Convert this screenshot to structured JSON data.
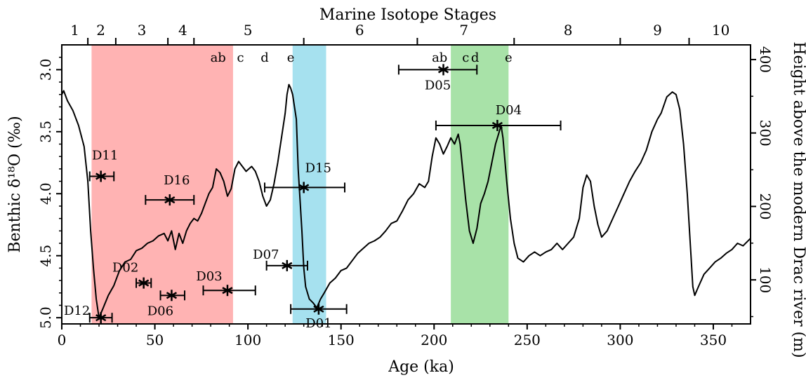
{
  "chart_data": {
    "type": "line",
    "top_axis_title": "Marine Isotope Stages",
    "xlabel": "Age (ka)",
    "ylabel": "Benthic δ¹⁸O (‰)",
    "ylabel_right": "Height above the modern Drac river (m)",
    "xlim": [
      0,
      370
    ],
    "ylim": [
      2.8,
      5.05
    ],
    "y_inverted": true,
    "y_right_lim": [
      40,
      420
    ],
    "x_ticks": [
      0,
      50,
      100,
      150,
      200,
      250,
      300,
      350
    ],
    "x_tick_labels": [
      "0",
      "50",
      "100",
      "150",
      "200",
      "250",
      "300",
      "350"
    ],
    "y_ticks": [
      3.0,
      3.5,
      4.0,
      4.5,
      5.0
    ],
    "y_tick_labels": [
      "3.0",
      "3.5",
      "4.0",
      "4.5",
      "5.0"
    ],
    "y_right_ticks": [
      100,
      200,
      300,
      400
    ],
    "y_right_tick_labels": [
      "100",
      "200",
      "300",
      "400"
    ],
    "grid": false,
    "shaded_bands": [
      {
        "x0": 16,
        "x1": 92,
        "color": "#ffb3b3"
      },
      {
        "x0": 124,
        "x1": 142,
        "color": "#a6e1ef"
      },
      {
        "x0": 209,
        "x1": 240,
        "color": "#a8e2a8"
      }
    ],
    "stage_labels": [
      {
        "label": "1",
        "x": 7
      },
      {
        "label": "2",
        "x": 21
      },
      {
        "label": "3",
        "x": 43
      },
      {
        "label": "4",
        "x": 65
      },
      {
        "label": "5",
        "x": 100
      },
      {
        "label": "6",
        "x": 160
      },
      {
        "label": "7",
        "x": 216
      },
      {
        "label": "8",
        "x": 272
      },
      {
        "label": "9",
        "x": 320
      },
      {
        "label": "10",
        "x": 354
      }
    ],
    "stage_boundaries": [
      14,
      29,
      57,
      71,
      130,
      191,
      243,
      300,
      337
    ],
    "substage_labels": [
      {
        "label": "ab",
        "x": 84
      },
      {
        "label": "c",
        "x": 96
      },
      {
        "label": "d",
        "x": 109
      },
      {
        "label": "e",
        "x": 123
      },
      {
        "label": "ab",
        "x": 203
      },
      {
        "label": "c",
        "x": 217
      },
      {
        "label": "d",
        "x": 222
      },
      {
        "label": "e",
        "x": 240
      }
    ],
    "series": [
      {
        "values": [
          [
            0,
            3.2
          ],
          [
            1,
            3.17
          ],
          [
            3,
            3.25
          ],
          [
            6,
            3.33
          ],
          [
            9,
            3.45
          ],
          [
            12,
            3.62
          ],
          [
            14,
            3.9
          ],
          [
            15.5,
            4.3
          ],
          [
            17,
            4.6
          ],
          [
            18.5,
            4.85
          ],
          [
            20,
            5.0
          ],
          [
            22,
            4.93
          ],
          [
            25,
            4.82
          ],
          [
            28,
            4.74
          ],
          [
            31,
            4.62
          ],
          [
            34,
            4.55
          ],
          [
            37,
            4.53
          ],
          [
            40,
            4.46
          ],
          [
            43,
            4.44
          ],
          [
            46,
            4.4
          ],
          [
            49,
            4.38
          ],
          [
            52,
            4.34
          ],
          [
            55,
            4.32
          ],
          [
            57,
            4.38
          ],
          [
            59,
            4.3
          ],
          [
            61,
            4.45
          ],
          [
            63,
            4.32
          ],
          [
            65,
            4.4
          ],
          [
            67,
            4.3
          ],
          [
            69,
            4.24
          ],
          [
            71,
            4.2
          ],
          [
            73,
            4.22
          ],
          [
            75,
            4.16
          ],
          [
            77,
            4.08
          ],
          [
            79,
            4.0
          ],
          [
            81,
            3.95
          ],
          [
            83,
            3.8
          ],
          [
            85,
            3.83
          ],
          [
            87,
            3.9
          ],
          [
            89,
            4.02
          ],
          [
            91,
            3.96
          ],
          [
            93,
            3.8
          ],
          [
            95,
            3.74
          ],
          [
            97,
            3.78
          ],
          [
            99,
            3.82
          ],
          [
            102,
            3.78
          ],
          [
            104,
            3.82
          ],
          [
            106,
            3.9
          ],
          [
            108,
            4.02
          ],
          [
            110,
            4.1
          ],
          [
            112,
            4.05
          ],
          [
            114,
            3.92
          ],
          [
            116,
            3.75
          ],
          [
            118,
            3.55
          ],
          [
            120,
            3.35
          ],
          [
            121,
            3.2
          ],
          [
            122,
            3.12
          ],
          [
            123,
            3.15
          ],
          [
            124,
            3.2
          ],
          [
            126,
            3.4
          ],
          [
            127,
            3.8
          ],
          [
            129,
            4.3
          ],
          [
            130,
            4.6
          ],
          [
            131,
            4.75
          ],
          [
            133,
            4.85
          ],
          [
            135,
            4.88
          ],
          [
            137,
            4.92
          ],
          [
            139,
            4.85
          ],
          [
            141,
            4.8
          ],
          [
            144,
            4.72
          ],
          [
            147,
            4.68
          ],
          [
            150,
            4.62
          ],
          [
            153,
            4.6
          ],
          [
            156,
            4.54
          ],
          [
            159,
            4.48
          ],
          [
            162,
            4.44
          ],
          [
            165,
            4.4
          ],
          [
            168,
            4.38
          ],
          [
            171,
            4.35
          ],
          [
            174,
            4.3
          ],
          [
            177,
            4.24
          ],
          [
            180,
            4.22
          ],
          [
            183,
            4.14
          ],
          [
            186,
            4.05
          ],
          [
            189,
            4.0
          ],
          [
            192,
            3.92
          ],
          [
            195,
            3.95
          ],
          [
            197,
            3.9
          ],
          [
            199,
            3.7
          ],
          [
            201,
            3.55
          ],
          [
            203,
            3.6
          ],
          [
            205,
            3.68
          ],
          [
            207,
            3.62
          ],
          [
            209,
            3.55
          ],
          [
            211,
            3.6
          ],
          [
            213,
            3.52
          ],
          [
            214,
            3.6
          ],
          [
            215,
            3.75
          ],
          [
            217,
            4.05
          ],
          [
            219,
            4.3
          ],
          [
            221,
            4.4
          ],
          [
            223,
            4.28
          ],
          [
            225,
            4.08
          ],
          [
            227,
            4.0
          ],
          [
            229,
            3.9
          ],
          [
            231,
            3.75
          ],
          [
            233,
            3.6
          ],
          [
            235,
            3.5
          ],
          [
            236,
            3.45
          ],
          [
            237,
            3.55
          ],
          [
            239,
            3.9
          ],
          [
            241,
            4.2
          ],
          [
            243,
            4.4
          ],
          [
            245,
            4.52
          ],
          [
            248,
            4.55
          ],
          [
            251,
            4.5
          ],
          [
            254,
            4.47
          ],
          [
            257,
            4.5
          ],
          [
            260,
            4.47
          ],
          [
            263,
            4.45
          ],
          [
            266,
            4.4
          ],
          [
            269,
            4.45
          ],
          [
            272,
            4.4
          ],
          [
            275,
            4.35
          ],
          [
            278,
            4.2
          ],
          [
            280,
            3.95
          ],
          [
            282,
            3.85
          ],
          [
            284,
            3.9
          ],
          [
            286,
            4.1
          ],
          [
            288,
            4.25
          ],
          [
            290,
            4.35
          ],
          [
            293,
            4.3
          ],
          [
            296,
            4.2
          ],
          [
            299,
            4.1
          ],
          [
            302,
            4.0
          ],
          [
            305,
            3.9
          ],
          [
            308,
            3.82
          ],
          [
            311,
            3.75
          ],
          [
            314,
            3.65
          ],
          [
            317,
            3.5
          ],
          [
            320,
            3.4
          ],
          [
            322,
            3.35
          ],
          [
            325,
            3.22
          ],
          [
            328,
            3.18
          ],
          [
            330,
            3.2
          ],
          [
            332,
            3.32
          ],
          [
            334,
            3.6
          ],
          [
            336,
            4.0
          ],
          [
            338,
            4.5
          ],
          [
            339,
            4.75
          ],
          [
            340,
            4.82
          ],
          [
            342,
            4.75
          ],
          [
            345,
            4.65
          ],
          [
            348,
            4.6
          ],
          [
            351,
            4.55
          ],
          [
            354,
            4.52
          ],
          [
            357,
            4.48
          ],
          [
            360,
            4.45
          ],
          [
            363,
            4.4
          ],
          [
            366,
            4.42
          ],
          [
            370,
            4.36
          ]
        ]
      }
    ],
    "data_points": [
      {
        "label": "D01",
        "x": 138,
        "y": 4.93,
        "xerr_lo": 15,
        "xerr_hi": 15
      },
      {
        "label": "D02",
        "x": 44,
        "y": 4.72,
        "xerr_lo": 4,
        "xerr_hi": 4
      },
      {
        "label": "D03",
        "x": 89,
        "y": 4.78,
        "xerr_lo": 13,
        "xerr_hi": 15
      },
      {
        "label": "D04",
        "x": 234,
        "y": 3.45,
        "xerr_lo": 33,
        "xerr_hi": 34
      },
      {
        "label": "D05",
        "x": 205,
        "y": 3.0,
        "xerr_lo": 24,
        "xerr_hi": 18
      },
      {
        "label": "D06",
        "x": 59,
        "y": 4.82,
        "xerr_lo": 6,
        "xerr_hi": 7
      },
      {
        "label": "D07",
        "x": 121,
        "y": 4.58,
        "xerr_lo": 11,
        "xerr_hi": 11
      },
      {
        "label": "D11",
        "x": 21,
        "y": 3.86,
        "xerr_lo": 6,
        "xerr_hi": 7
      },
      {
        "label": "D12",
        "x": 21,
        "y": 5.0,
        "xerr_lo": 6,
        "xerr_hi": 6
      },
      {
        "label": "D15",
        "x": 130,
        "y": 3.95,
        "xerr_lo": 21,
        "xerr_hi": 22
      },
      {
        "label": "D16",
        "x": 58,
        "y": 4.05,
        "xerr_lo": 13,
        "xerr_hi": 13
      }
    ]
  }
}
